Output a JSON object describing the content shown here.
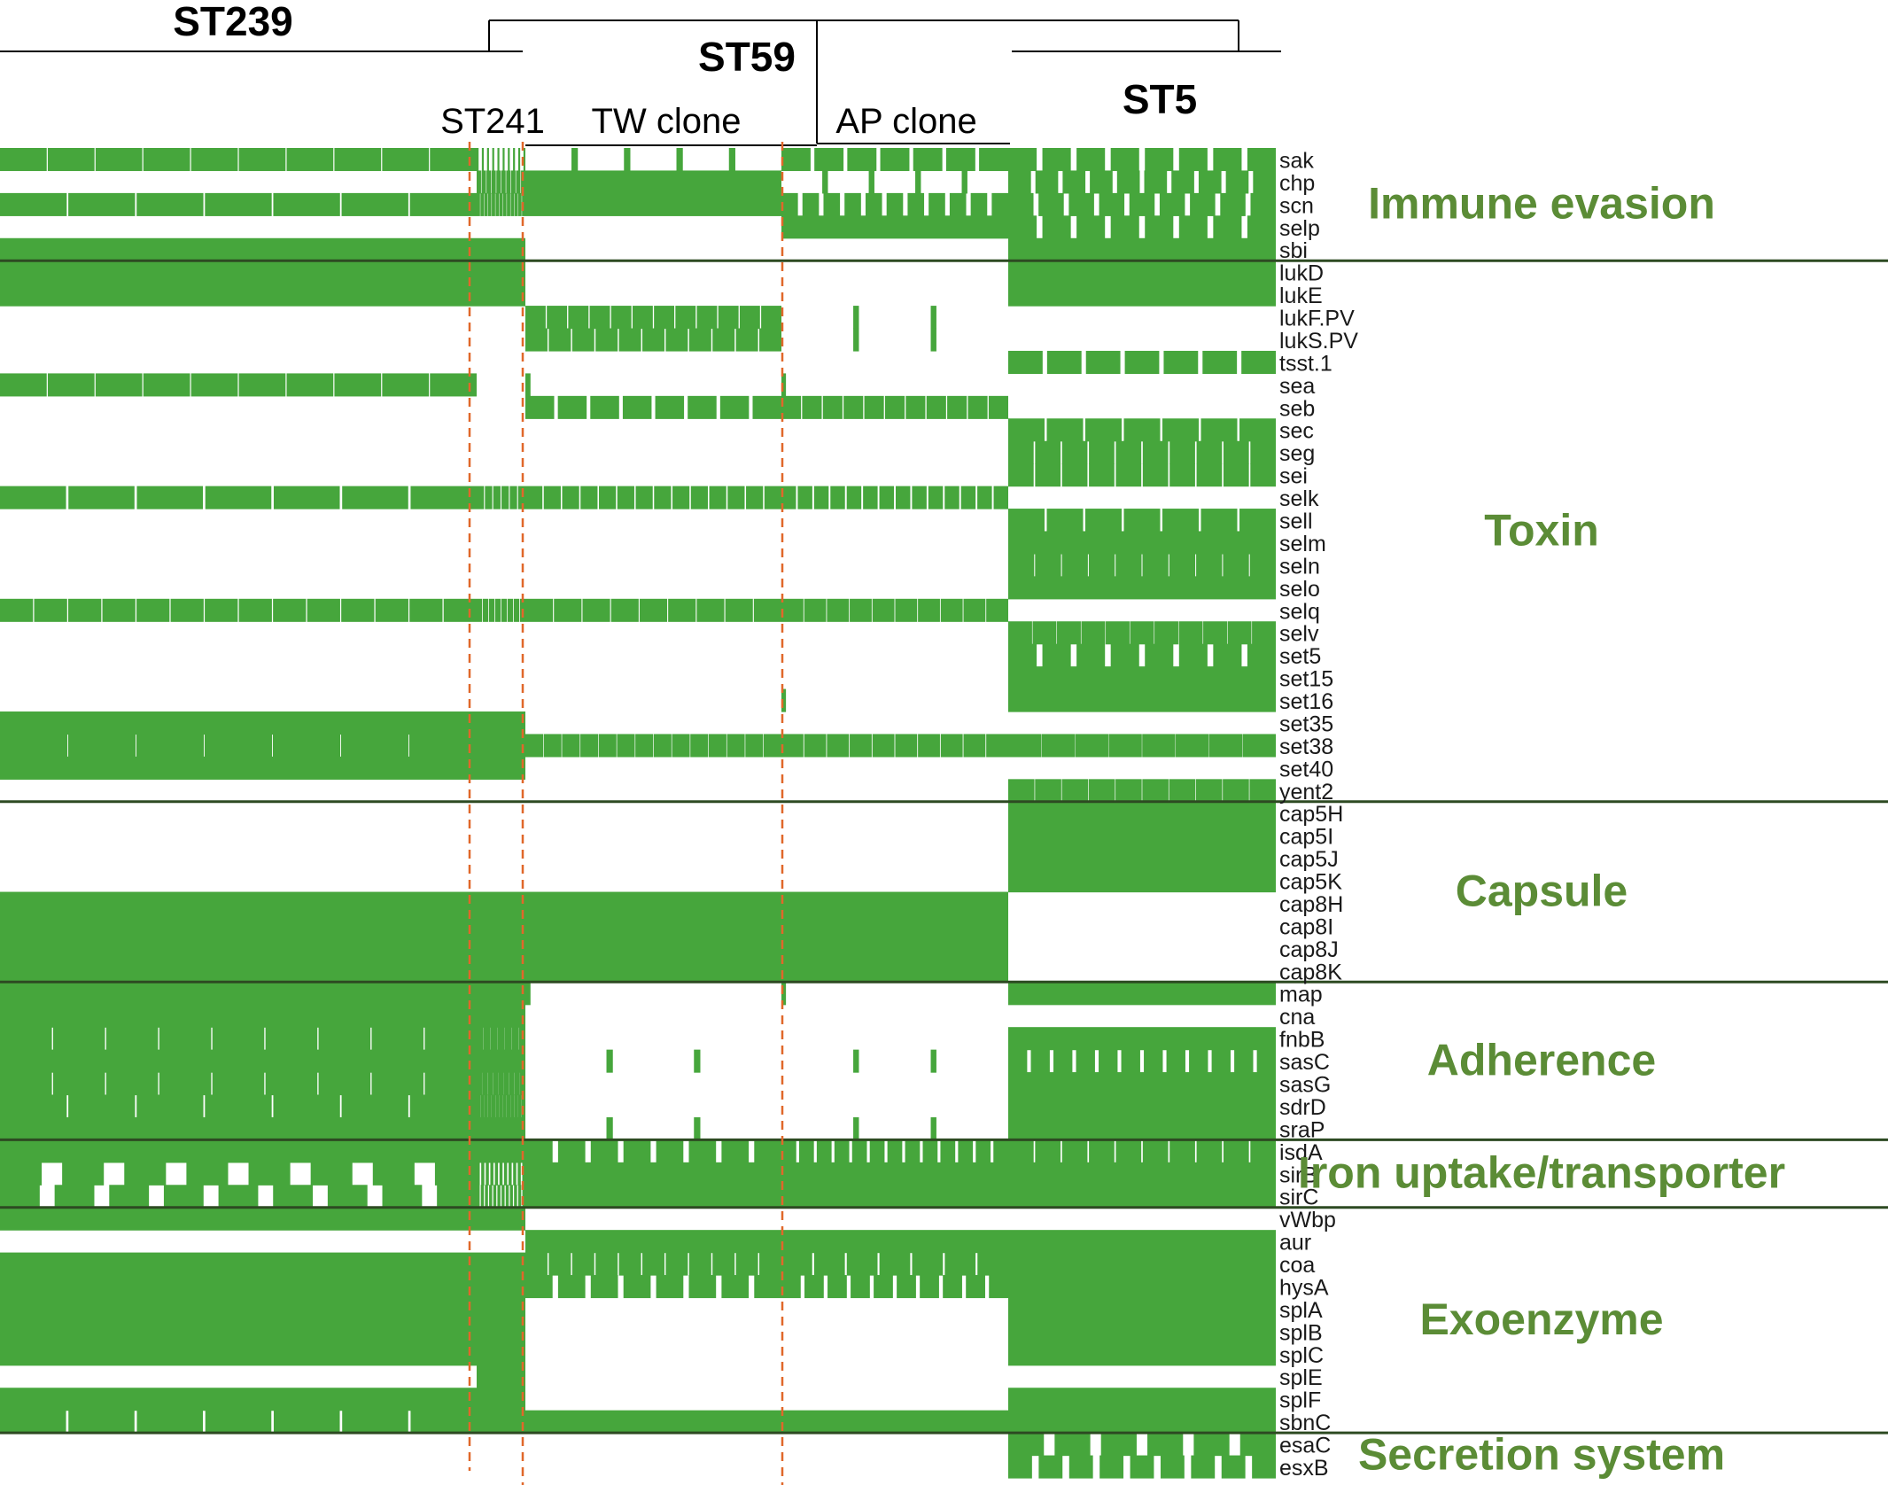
{
  "chart_data": {
    "type": "heatmap",
    "title": "",
    "description_value_encoding": "presence/absence of virulence genes per isolate; cell value = fraction of isolates in the group carrying the gene (1 = solid green, 0 = white)",
    "colors": {
      "present": "#46a63c",
      "separator": "#2d4a22",
      "category": "#5b8c36",
      "clone_divider": "#e0682a"
    },
    "lineages": [
      {
        "label": "ST239"
      },
      {
        "label": "ST59"
      },
      {
        "label": "ST5"
      }
    ],
    "groups": [
      {
        "key": "ST239",
        "label": ""
      },
      {
        "key": "ST241",
        "label": "ST241"
      },
      {
        "key": "TW",
        "label": "TW clone"
      },
      {
        "key": "AP",
        "label": "AP clone"
      },
      {
        "key": "ST5",
        "label": ""
      }
    ],
    "genes": [
      "sak",
      "chp",
      "scn",
      "selp",
      "sbi",
      "lukD",
      "lukE",
      "lukF.PV",
      "lukS.PV",
      "tsst.1",
      "sea",
      "seb",
      "sec",
      "seg",
      "sei",
      "selk",
      "sell",
      "selm",
      "seln",
      "selo",
      "selq",
      "selv",
      "set5",
      "set15",
      "set16",
      "set35",
      "set38",
      "set40",
      "yent2",
      "cap5H",
      "cap5I",
      "cap5J",
      "cap5K",
      "cap8H",
      "cap8I",
      "cap8J",
      "cap8K",
      "map",
      "cna",
      "fnbB",
      "sasC",
      "sasG",
      "sdrD",
      "sraP",
      "isdA",
      "sirB",
      "sirC",
      "vWbp",
      "aur",
      "coa",
      "hysA",
      "splA",
      "splB",
      "splC",
      "splE",
      "splF",
      "sbnC",
      "esaC",
      "esxB"
    ],
    "categories": [
      {
        "label": "Immune evasion",
        "genes": [
          "sak",
          "chp",
          "scn",
          "selp",
          "sbi"
        ]
      },
      {
        "label": "Toxin",
        "genes": [
          "lukD",
          "lukE",
          "lukF.PV",
          "lukS.PV",
          "tsst.1",
          "sea",
          "seb",
          "sec",
          "seg",
          "sei",
          "selk",
          "sell",
          "selm",
          "seln",
          "selo",
          "selq",
          "selv",
          "set5",
          "set15",
          "set16",
          "set35",
          "set38",
          "set40",
          "yent2"
        ]
      },
      {
        "label": "Capsule",
        "genes": [
          "cap5H",
          "cap5I",
          "cap5J",
          "cap5K",
          "cap8H",
          "cap8I",
          "cap8J",
          "cap8K"
        ]
      },
      {
        "label": "Adherence",
        "genes": [
          "map",
          "cna",
          "fnbB",
          "sasC",
          "sasG",
          "sdrD",
          "sraP"
        ]
      },
      {
        "label": "Iron uptake/transporter",
        "genes": [
          "isdA",
          "sirB",
          "sirC"
        ]
      },
      {
        "label": "Exoenzyme",
        "genes": [
          "vWbp",
          "aur",
          "coa",
          "hysA",
          "splA",
          "splB",
          "splC",
          "splE",
          "splF",
          "sbnC"
        ]
      },
      {
        "label": "Secretion system",
        "genes": [
          "esaC",
          "esxB"
        ]
      }
    ],
    "presence": {
      "sak": [
        0.98,
        0.4,
        0.1,
        0.9,
        0.85
      ],
      "chp": [
        0,
        0.9,
        1,
        0.1,
        0.85
      ],
      "scn": [
        0.98,
        0.9,
        1,
        0.8,
        0.85
      ],
      "selp": [
        0,
        0,
        0,
        1,
        0.85
      ],
      "sbi": [
        1,
        1,
        0,
        0,
        1
      ],
      "lukD": [
        1,
        1,
        0,
        0,
        1
      ],
      "lukE": [
        1,
        1,
        0,
        0,
        1
      ],
      "lukF.PV": [
        0,
        0,
        0.95,
        0.05,
        0
      ],
      "lukS.PV": [
        0,
        0,
        0.95,
        0.05,
        0
      ],
      "tsst.1": [
        0,
        0,
        0,
        0,
        0.9
      ],
      "sea": [
        0.98,
        0,
        0.02,
        0.02,
        0
      ],
      "seb": [
        0,
        0,
        0.9,
        0.95,
        0
      ],
      "sec": [
        0,
        0,
        0,
        0,
        0.95
      ],
      "seg": [
        0,
        0,
        0,
        0,
        0.95
      ],
      "sei": [
        0,
        0,
        0,
        0,
        0.95
      ],
      "selk": [
        0.97,
        0.9,
        0.93,
        0.9,
        0
      ],
      "sell": [
        0,
        0,
        0,
        0,
        0.95
      ],
      "selm": [
        0,
        0,
        0,
        0,
        1
      ],
      "seln": [
        0,
        0,
        0,
        0,
        0.97
      ],
      "selo": [
        0,
        0,
        0,
        0,
        1
      ],
      "selq": [
        0.97,
        0.9,
        0.97,
        0.97,
        0
      ],
      "selv": [
        0,
        0,
        0,
        0,
        0.98
      ],
      "set5": [
        0,
        0,
        0,
        0,
        0.85
      ],
      "set15": [
        0,
        0,
        0,
        0,
        1
      ],
      "set16": [
        0,
        0,
        0,
        0.02,
        1
      ],
      "set35": [
        1,
        1,
        0,
        0,
        0
      ],
      "set38": [
        0.99,
        1,
        0.97,
        0.97,
        0.99
      ],
      "set40": [
        1,
        1,
        0,
        0,
        0
      ],
      "yent2": [
        0,
        0,
        0,
        0,
        0.98
      ],
      "cap5H": [
        0,
        0,
        0,
        0,
        1
      ],
      "cap5I": [
        0,
        0,
        0,
        0,
        1
      ],
      "cap5J": [
        0,
        0,
        0,
        0,
        1
      ],
      "cap5K": [
        0,
        0,
        0,
        0,
        1
      ],
      "cap8H": [
        1,
        1,
        1,
        1,
        0
      ],
      "cap8I": [
        1,
        1,
        1,
        1,
        0
      ],
      "cap8J": [
        1,
        1,
        1,
        1,
        0
      ],
      "cap8K": [
        1,
        1,
        1,
        1,
        0
      ],
      "map": [
        1,
        1,
        0.02,
        0.02,
        1
      ],
      "cna": [
        1,
        1,
        0,
        0,
        0
      ],
      "fnbB": [
        0.98,
        0.98,
        0,
        0,
        1
      ],
      "sasC": [
        1,
        1,
        0.05,
        0.05,
        0.85
      ],
      "sasG": [
        0.98,
        0.98,
        0,
        0,
        1
      ],
      "sdrD": [
        0.98,
        0.98,
        0,
        0,
        1
      ],
      "sraP": [
        1,
        1,
        0.05,
        0.05,
        1
      ],
      "isdA": [
        1,
        1,
        0.85,
        0.85,
        0.95
      ],
      "sirB": [
        0.7,
        0.7,
        1,
        1,
        1
      ],
      "sirC": [
        0.75,
        0.75,
        1,
        1,
        1
      ],
      "vWbp": [
        1,
        1,
        0,
        0,
        0
      ],
      "aur": [
        0,
        0,
        1,
        1,
        1
      ],
      "coa": [
        1,
        1,
        0.95,
        0.95,
        1
      ],
      "hysA": [
        1,
        1,
        0.85,
        0.85,
        1
      ],
      "splA": [
        1,
        1,
        0,
        0,
        1
      ],
      "splB": [
        1,
        1,
        0,
        0,
        1
      ],
      "splC": [
        1,
        1,
        0,
        0,
        1
      ],
      "splE": [
        0,
        1,
        0,
        0,
        0
      ],
      "splF": [
        1,
        1,
        0,
        0,
        1
      ],
      "sbnC": [
        0.97,
        1,
        1,
        1,
        1
      ],
      "esaC": [
        0,
        0,
        0,
        0,
        0.8
      ],
      "esxB": [
        0,
        0,
        0,
        0,
        0.8
      ]
    }
  }
}
